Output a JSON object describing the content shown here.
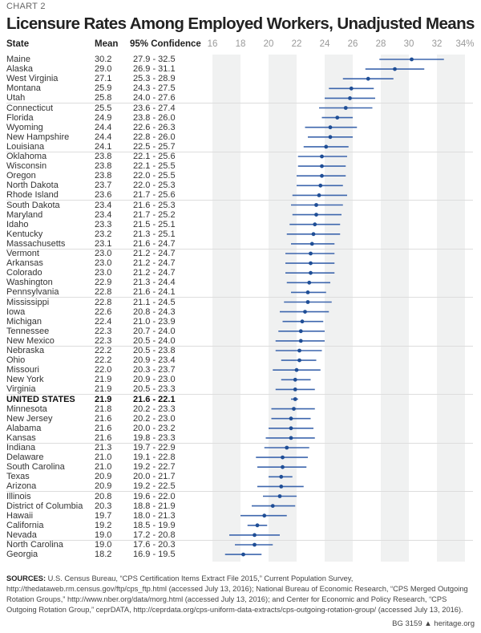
{
  "chart_label": "CHART 2",
  "chart_data": {
    "type": "dot-interval",
    "title": "Licensure Rates Among Employed Workers, Unadjusted Means",
    "columns": {
      "state": "State",
      "mean": "Mean",
      "ci": "95% Confidence"
    },
    "x_ticks": [
      "16",
      "18",
      "20",
      "22",
      "24",
      "26",
      "28",
      "30",
      "32",
      "34%"
    ],
    "xlim": [
      16,
      34
    ],
    "grid": "alternating shaded bands",
    "colors": {
      "marker": "#1f4e96",
      "interval": "#3d66ad",
      "band": "#f0f1f1"
    },
    "rows": [
      {
        "state": "Maine",
        "mean": "30.2",
        "ci": "27.9 - 32.5"
      },
      {
        "state": "Alaska",
        "mean": "29.0",
        "ci": "26.9 - 31.1"
      },
      {
        "state": "West Virginia",
        "mean": "27.1",
        "ci": "25.3 - 28.9"
      },
      {
        "state": "Montana",
        "mean": "25.9",
        "ci": "24.3 - 27.5"
      },
      {
        "state": "Utah",
        "mean": "25.8",
        "ci": "24.0 - 27.6"
      },
      {
        "state": "Connecticut",
        "mean": "25.5",
        "ci": "23.6 - 27.4"
      },
      {
        "state": "Florida",
        "mean": "24.9",
        "ci": "23.8 - 26.0"
      },
      {
        "state": "Wyoming",
        "mean": "24.4",
        "ci": "22.6 - 26.3"
      },
      {
        "state": "New Hampshire",
        "mean": "24.4",
        "ci": "22.8 - 26.0"
      },
      {
        "state": "Louisiana",
        "mean": "24.1",
        "ci": "22.5 - 25.7"
      },
      {
        "state": "Oklahoma",
        "mean": "23.8",
        "ci": "22.1 - 25.6"
      },
      {
        "state": "Wisconsin",
        "mean": "23.8",
        "ci": "22.1 - 25.5"
      },
      {
        "state": "Oregon",
        "mean": "23.8",
        "ci": "22.0 - 25.5"
      },
      {
        "state": "North Dakota",
        "mean": "23.7",
        "ci": "22.0 - 25.3"
      },
      {
        "state": "Rhode Island",
        "mean": "23.6",
        "ci": "21.7 - 25.6"
      },
      {
        "state": "South Dakota",
        "mean": "23.4",
        "ci": "21.6 - 25.3"
      },
      {
        "state": "Maryland",
        "mean": "23.4",
        "ci": "21.7 - 25.2"
      },
      {
        "state": "Idaho",
        "mean": "23.3",
        "ci": "21.5 - 25.1"
      },
      {
        "state": "Kentucky",
        "mean": "23.2",
        "ci": "21.3 - 25.1"
      },
      {
        "state": "Massachusetts",
        "mean": "23.1",
        "ci": "21.6 - 24.7"
      },
      {
        "state": "Vermont",
        "mean": "23.0",
        "ci": "21.2 - 24.7"
      },
      {
        "state": "Arkansas",
        "mean": "23.0",
        "ci": "21.2 - 24.7"
      },
      {
        "state": "Colorado",
        "mean": "23.0",
        "ci": "21.2 - 24.7"
      },
      {
        "state": "Washington",
        "mean": "22.9",
        "ci": "21.3 - 24.4"
      },
      {
        "state": "Pennsylvania",
        "mean": "22.8",
        "ci": "21.6 - 24.1"
      },
      {
        "state": "Mississippi",
        "mean": "22.8",
        "ci": "21.1 - 24.5"
      },
      {
        "state": "Iowa",
        "mean": "22.6",
        "ci": "20.8 - 24.3"
      },
      {
        "state": "Michigan",
        "mean": "22.4",
        "ci": "21.0 - 23.9"
      },
      {
        "state": "Tennessee",
        "mean": "22.3",
        "ci": "20.7 - 24.0"
      },
      {
        "state": "New Mexico",
        "mean": "22.3",
        "ci": "20.5 - 24.0"
      },
      {
        "state": "Nebraska",
        "mean": "22.2",
        "ci": "20.5 - 23.8"
      },
      {
        "state": "Ohio",
        "mean": "22.2",
        "ci": "20.9 - 23.4"
      },
      {
        "state": "Missouri",
        "mean": "22.0",
        "ci": "20.3 - 23.7"
      },
      {
        "state": "New York",
        "mean": "21.9",
        "ci": "20.9 - 23.0"
      },
      {
        "state": "Virginia",
        "mean": "21.9",
        "ci": "20.5 - 23.3"
      },
      {
        "state": "UNITED STATES",
        "mean": "21.9",
        "ci": "21.6 - 22.1",
        "highlight": true
      },
      {
        "state": "Minnesota",
        "mean": "21.8",
        "ci": "20.2 - 23.3"
      },
      {
        "state": "New Jersey",
        "mean": "21.6",
        "ci": "20.2 - 23.0"
      },
      {
        "state": "Alabama",
        "mean": "21.6",
        "ci": "20.0 - 23.2"
      },
      {
        "state": "Kansas",
        "mean": "21.6",
        "ci": "19.8 - 23.3"
      },
      {
        "state": "Indiana",
        "mean": "21.3",
        "ci": "19.7 - 22.9"
      },
      {
        "state": "Delaware",
        "mean": "21.0",
        "ci": "19.1 - 22.8"
      },
      {
        "state": "South Carolina",
        "mean": "21.0",
        "ci": "19.2 - 22.7"
      },
      {
        "state": "Texas",
        "mean": "20.9",
        "ci": "20.0 - 21.7"
      },
      {
        "state": "Arizona",
        "mean": "20.9",
        "ci": "19.2 - 22.5"
      },
      {
        "state": "Illinois",
        "mean": "20.8",
        "ci": "19.6 - 22.0"
      },
      {
        "state": "District of Columbia",
        "mean": "20.3",
        "ci": "18.8 - 21.9"
      },
      {
        "state": "Hawaii",
        "mean": "19.7",
        "ci": "18.0 - 21.3"
      },
      {
        "state": "California",
        "mean": "19.2",
        "ci": "18.5 - 19.9"
      },
      {
        "state": "Nevada",
        "mean": "19.0",
        "ci": "17.2 - 20.8"
      },
      {
        "state": "North Carolina",
        "mean": "19.0",
        "ci": "17.6 - 20.3"
      },
      {
        "state": "Georgia",
        "mean": "18.2",
        "ci": "16.9 - 19.5"
      }
    ]
  },
  "sources": {
    "label": "SOURCES:",
    "text": "U.S. Census Bureau, “CPS Certification Items Extract File 2015,” Current Population Survey, http://thedataweb.rm.census.gov/ftp/cps_ftp.html (accessed July 13, 2016); National Bureau of Economic Research, “CPS Merged Outgoing Rotation Groups,” http://www.nber.org/data/morg.html (accessed July 13, 2016); and Center for Economic and Policy Research, “CPS Outgoing Rotation Group,” ceprDATA, http://ceprdata.org/cps-uniform-data-extracts/cps-outgoing-rotation-group/ (accessed July 13, 2016)."
  },
  "footer": {
    "code": "BG 3159",
    "logo_icon": "bell-icon",
    "site": "heritage.org"
  }
}
